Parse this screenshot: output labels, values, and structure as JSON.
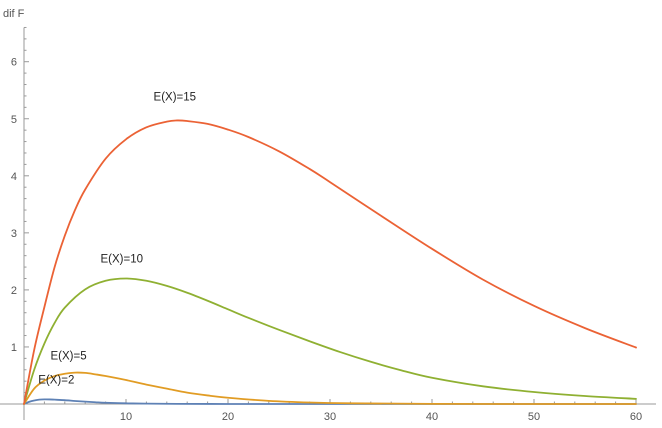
{
  "chart_data": {
    "type": "line",
    "title": "",
    "xlabel": "",
    "ylabel": "dif F",
    "xlim": [
      0,
      61
    ],
    "ylim": [
      0,
      6.6
    ],
    "x_ticks": [
      10,
      20,
      30,
      40,
      50,
      60
    ],
    "y_ticks": [
      1,
      2,
      3,
      4,
      5,
      6
    ],
    "grid": false,
    "colors": {
      "axis": "#9a9a9a",
      "tick_label": "#555555",
      "series_label": "#222222"
    },
    "series": [
      {
        "name": "E(X)=2",
        "color": "#5e81b5",
        "x": [
          0,
          0.5,
          1,
          1.5,
          2,
          2.5,
          3,
          4,
          5,
          6,
          7,
          8,
          10,
          12,
          15,
          20,
          25,
          30,
          40,
          50,
          60
        ],
        "y": [
          0,
          0.037,
          0.061,
          0.076,
          0.081,
          0.08,
          0.076,
          0.067,
          0.053,
          0.041,
          0.031,
          0.022,
          0.012,
          0.006,
          0.002,
          0.0003,
          0,
          0,
          0,
          0,
          0
        ]
      },
      {
        "name": "E(X)=5",
        "color": "#e19c24",
        "x": [
          0,
          1,
          2,
          3,
          4,
          5,
          6,
          7,
          8,
          10,
          12,
          14,
          16,
          18,
          20,
          24,
          28,
          32,
          40,
          50,
          60
        ],
        "y": [
          0,
          0.27,
          0.41,
          0.49,
          0.53,
          0.55,
          0.545,
          0.52,
          0.49,
          0.42,
          0.34,
          0.27,
          0.2,
          0.15,
          0.11,
          0.055,
          0.026,
          0.012,
          0.002,
          0.0002,
          0
        ]
      },
      {
        "name": "E(X)=10",
        "color": "#8fb032",
        "x": [
          0,
          1,
          2,
          3,
          4,
          6,
          8,
          10,
          12,
          14,
          16,
          18,
          20,
          22,
          25,
          28,
          31,
          34,
          37,
          40,
          45,
          50,
          55,
          60
        ],
        "y": [
          0,
          0.6,
          1.06,
          1.42,
          1.69,
          2.01,
          2.16,
          2.2,
          2.16,
          2.07,
          1.95,
          1.81,
          1.66,
          1.51,
          1.3,
          1.1,
          0.91,
          0.74,
          0.59,
          0.46,
          0.31,
          0.21,
          0.14,
          0.09
        ]
      },
      {
        "name": "E(X)=15",
        "color": "#eb6235",
        "x": [
          0,
          1,
          2,
          3,
          4,
          5,
          6,
          8,
          10,
          12,
          14,
          15,
          16,
          18,
          20,
          22,
          25,
          28,
          30,
          35,
          40,
          45,
          50,
          55,
          60
        ],
        "y": [
          0,
          0.95,
          1.7,
          2.4,
          2.95,
          3.4,
          3.76,
          4.3,
          4.64,
          4.85,
          4.95,
          4.97,
          4.96,
          4.91,
          4.81,
          4.68,
          4.43,
          4.12,
          3.89,
          3.3,
          2.72,
          2.18,
          1.72,
          1.33,
          0.99
        ]
      }
    ],
    "labels": [
      {
        "text": "E(X)=2",
        "x": 1.4,
        "y": 0.36
      },
      {
        "text": "E(X)=5",
        "x": 2.6,
        "y": 0.78
      },
      {
        "text": "E(X)=10",
        "x": 7.5,
        "y": 2.48
      },
      {
        "text": "E(X)=15",
        "x": 12.7,
        "y": 5.32
      }
    ]
  }
}
